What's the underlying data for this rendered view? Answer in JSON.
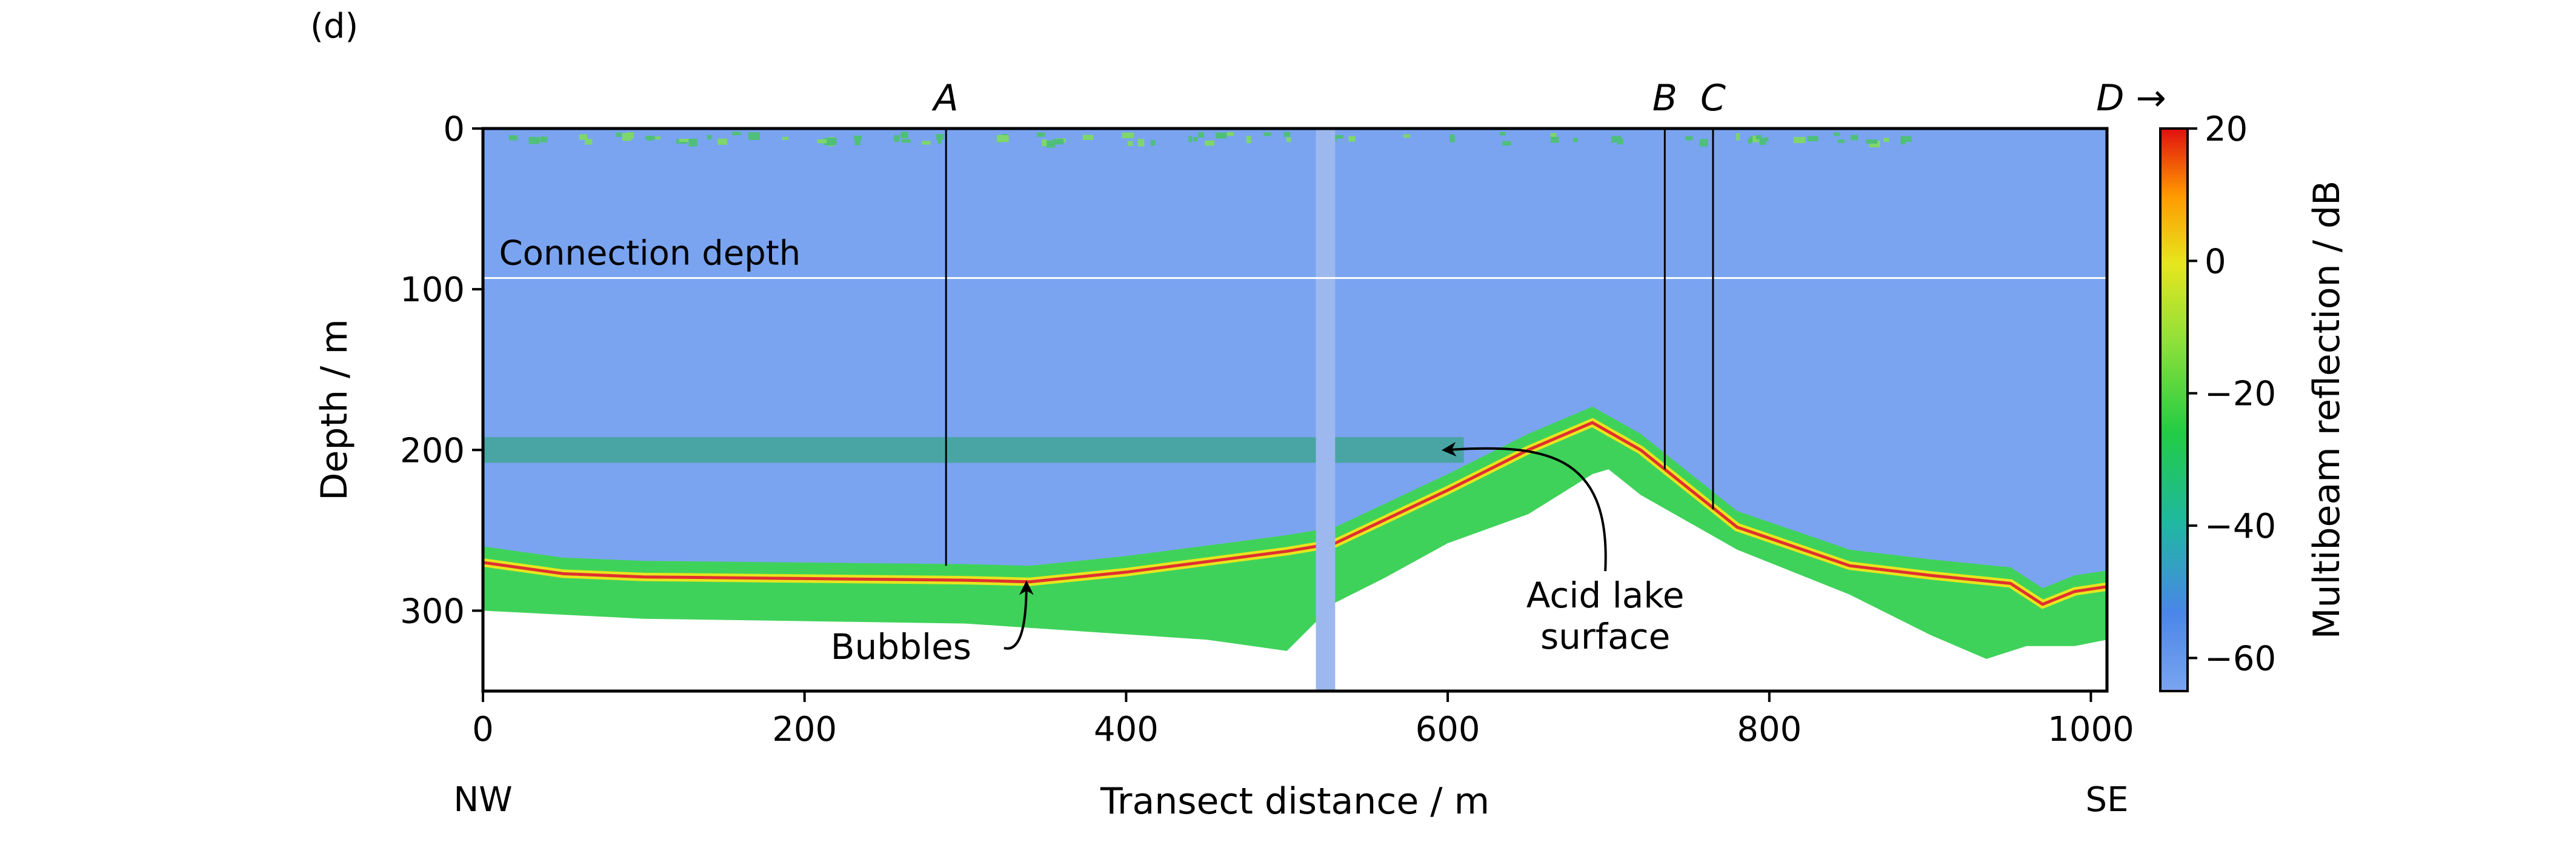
{
  "panel_label": "(d)",
  "chart_data": {
    "type": "heatmap",
    "title": "",
    "xlabel": "Transect distance / m",
    "ylabel": "Depth / m",
    "xlim": [
      0,
      1010
    ],
    "ylim": [
      350,
      0
    ],
    "x_ticks": [
      0,
      200,
      400,
      600,
      800,
      1000
    ],
    "y_ticks": [
      0,
      100,
      200,
      300
    ],
    "x_end_labels": {
      "left": "NW",
      "right": "SE"
    },
    "colorbar": {
      "label": "Multibeam reflection / dB",
      "range": [
        -65,
        20
      ],
      "ticks": [
        20,
        0,
        -20,
        -40,
        -60
      ],
      "tick_labels": [
        "20",
        "0",
        "−20",
        "−40",
        "−60"
      ],
      "colormap": [
        "#7aa4f0",
        "#4a86e8",
        "#1fb8a0",
        "#22cc44",
        "#8ee03a",
        "#e6e61e",
        "#ff9a00",
        "#e01010"
      ]
    },
    "water_column_color": "#7aa4f0",
    "connection_depth": {
      "depth": 93,
      "label": "Connection depth",
      "color": "#ffffff"
    },
    "layer_200m": {
      "depth": 200,
      "x_range": [
        0,
        610
      ]
    },
    "seafloor_profile": {
      "x": [
        0,
        50,
        100,
        200,
        300,
        340,
        400,
        500,
        530,
        600,
        650,
        690,
        720,
        780,
        850,
        900,
        950,
        970,
        990,
        1010
      ],
      "depth": [
        270,
        277,
        279,
        280,
        281,
        282,
        276,
        263,
        258,
        225,
        200,
        183,
        200,
        248,
        272,
        278,
        283,
        296,
        288,
        285
      ]
    },
    "acid_lake_surface_profile": {
      "x": [
        530,
        560,
        600,
        650,
        690,
        700,
        720,
        780,
        850,
        900,
        935,
        960,
        990,
        1010
      ],
      "depth": [
        295,
        280,
        258,
        240,
        215,
        212,
        228,
        262,
        290,
        315,
        330,
        322,
        322,
        318
      ]
    },
    "transect_markers": [
      {
        "label": "A",
        "x": 288,
        "depth_end": 272
      },
      {
        "label": "B",
        "x": 735,
        "depth_end": 212
      },
      {
        "label": "C",
        "x": 765,
        "depth_end": 237
      }
    ],
    "off_chart_marker": {
      "label": "D →",
      "x": 1010
    },
    "annotations": [
      {
        "id": "bubbles",
        "text_lines": [
          "Bubbles"
        ],
        "text_x": 260,
        "text_depth": 330,
        "target_x": 338,
        "target_depth": 283
      },
      {
        "id": "acid-lake",
        "text_lines": [
          "Acid lake",
          "surface"
        ],
        "text_x": 698,
        "text_depth": 298,
        "target_x": 598,
        "target_depth": 200
      }
    ]
  }
}
